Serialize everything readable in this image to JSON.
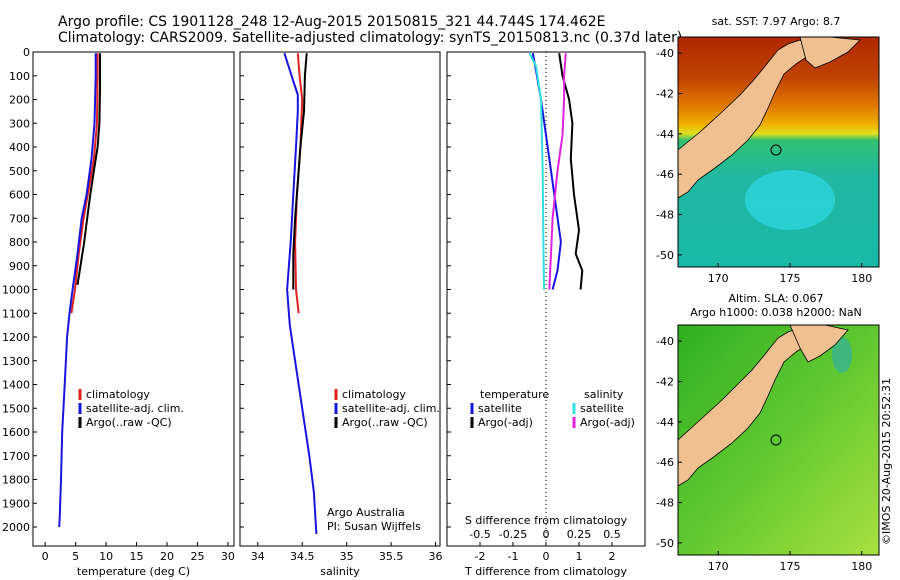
{
  "header": {
    "title_line1": "Argo profile: CS 1901128_248 12-Aug-2015 20150815_321 44.744S 174.462E",
    "title_line2": "Climatology: CARS2009. Satellite-adjusted climatology: synTS_20150813.nc (0.37d later)"
  },
  "colors": {
    "climatology": "#dd2020",
    "satellite": "#1515dd",
    "argo": "#000000",
    "sal_satellite": "#30e0e0",
    "sal_argo": "#e020e0",
    "land": "#f0c090"
  },
  "chart_data": [
    {
      "type": "line",
      "panel": "temperature",
      "xlabel": "temperature (deg C)",
      "xticks": [
        "0",
        "5",
        "10",
        "15",
        "20",
        "25",
        "30"
      ],
      "xlim": [
        -2,
        31
      ],
      "ylim": [
        2080,
        0
      ],
      "yticks": [
        "0",
        "100",
        "200",
        "300",
        "400",
        "500",
        "600",
        "700",
        "800",
        "900",
        "1000",
        "1100",
        "1200",
        "1300",
        "1400",
        "1500",
        "1600",
        "1700",
        "1800",
        "1900",
        "2000"
      ],
      "legend": [
        "climatology",
        "satellite-adj. clim.",
        "Argo(..raw -QC)"
      ],
      "series": [
        {
          "name": "climatology",
          "color": "#dd2020",
          "points": [
            [
              8.6,
              5
            ],
            [
              8.6,
              100
            ],
            [
              8.5,
              300
            ],
            [
              8.0,
              450
            ],
            [
              7.0,
              600
            ],
            [
              6.3,
              700
            ],
            [
              5.5,
              850
            ],
            [
              4.9,
              1000
            ],
            [
              4.3,
              1100
            ]
          ]
        },
        {
          "name": "satellite-adj. clim.",
          "color": "#1515dd",
          "points": [
            [
              8.3,
              5
            ],
            [
              8.3,
              100
            ],
            [
              8.1,
              300
            ],
            [
              7.6,
              450
            ],
            [
              6.8,
              600
            ],
            [
              6.0,
              700
            ],
            [
              5.3,
              850
            ],
            [
              4.5,
              1000
            ],
            [
              4.0,
              1100
            ],
            [
              3.6,
              1200
            ],
            [
              3.2,
              1400
            ],
            [
              2.8,
              1600
            ],
            [
              2.6,
              1800
            ],
            [
              2.4,
              1950
            ],
            [
              2.3,
              2000
            ]
          ]
        },
        {
          "name": "Argo(..raw -QC)",
          "color": "#000000",
          "points": [
            [
              9.0,
              5
            ],
            [
              9.0,
              150
            ],
            [
              8.9,
              300
            ],
            [
              8.6,
              400
            ],
            [
              8.0,
              500
            ],
            [
              7.4,
              600
            ],
            [
              6.9,
              700
            ],
            [
              6.4,
              800
            ],
            [
              5.8,
              900
            ],
            [
              5.3,
              980
            ]
          ]
        }
      ]
    },
    {
      "type": "line",
      "panel": "salinity",
      "xlabel": "salinity",
      "xticks": [
        "34",
        "34.5",
        "35",
        "35.5",
        "36"
      ],
      "xlim": [
        33.8,
        36.05
      ],
      "ylim": [
        2080,
        0
      ],
      "legend": [
        "climatology",
        "satellite-adj. clim.",
        "Argo(..raw -QC)"
      ],
      "annotations": [
        "Argo Australia",
        "PI: Susan Wijffels"
      ],
      "series": [
        {
          "name": "climatology",
          "color": "#dd2020",
          "points": [
            [
              34.45,
              5
            ],
            [
              34.47,
              100
            ],
            [
              34.5,
              200
            ],
            [
              34.48,
              400
            ],
            [
              34.44,
              600
            ],
            [
              34.42,
              800
            ],
            [
              34.43,
              1000
            ],
            [
              34.46,
              1100
            ]
          ]
        },
        {
          "name": "satellite-adj. clim.",
          "color": "#1515dd",
          "points": [
            [
              34.3,
              5
            ],
            [
              34.38,
              100
            ],
            [
              34.45,
              180
            ],
            [
              34.45,
              250
            ],
            [
              34.43,
              400
            ],
            [
              34.4,
              600
            ],
            [
              34.37,
              800
            ],
            [
              34.33,
              1000
            ],
            [
              34.36,
              1150
            ],
            [
              34.42,
              1300
            ],
            [
              34.5,
              1500
            ],
            [
              34.58,
              1700
            ],
            [
              34.63,
              1850
            ],
            [
              34.66,
              2030
            ]
          ]
        },
        {
          "name": "Argo(..raw -QC)",
          "color": "#000000",
          "points": [
            [
              34.55,
              5
            ],
            [
              34.53,
              100
            ],
            [
              34.52,
              250
            ],
            [
              34.48,
              400
            ],
            [
              34.45,
              550
            ],
            [
              34.42,
              700
            ],
            [
              34.4,
              850
            ],
            [
              34.4,
              1000
            ]
          ]
        }
      ]
    },
    {
      "type": "line",
      "panel": "difference",
      "xlabel": "T difference from climatology",
      "xlabel_top": "S difference from climatology",
      "xticks": [
        "-2",
        "-1",
        "0",
        "1",
        "2"
      ],
      "s_ticks": [
        "-0.5",
        "-0.25",
        "0",
        "0.25",
        "0.5"
      ],
      "xlim": [
        -3,
        3
      ],
      "ylim": [
        2080,
        0
      ],
      "legend_temperature": [
        "temperature",
        "satellite",
        "Argo(-adj)"
      ],
      "legend_salinity": [
        "salinity",
        "satellite",
        "Argo(-adj)"
      ],
      "series": [
        {
          "name": "temperature satellite",
          "color": "#1515dd",
          "points": [
            [
              -0.4,
              5
            ],
            [
              -0.3,
              80
            ],
            [
              -0.15,
              200
            ],
            [
              0.0,
              350
            ],
            [
              0.15,
              500
            ],
            [
              0.3,
              650
            ],
            [
              0.45,
              800
            ],
            [
              0.35,
              920
            ],
            [
              0.2,
              1000
            ]
          ]
        },
        {
          "name": "temperature Argo(-adj)",
          "color": "#000000",
          "points": [
            [
              0.4,
              5
            ],
            [
              0.5,
              100
            ],
            [
              0.7,
              200
            ],
            [
              0.8,
              300
            ],
            [
              0.75,
              450
            ],
            [
              0.85,
              600
            ],
            [
              1.0,
              750
            ],
            [
              0.9,
              850
            ],
            [
              1.1,
              920
            ],
            [
              1.05,
              1000
            ]
          ]
        },
        {
          "name": "salinity satellite",
          "color": "#30e0e0",
          "points": [
            [
              -0.5,
              5
            ],
            [
              -0.3,
              60
            ],
            [
              -0.15,
              200
            ],
            [
              -0.1,
              500
            ],
            [
              -0.08,
              800
            ],
            [
              -0.06,
              1000
            ]
          ]
        },
        {
          "name": "salinity Argo(-adj)",
          "color": "#e020e0",
          "points": [
            [
              0.6,
              5
            ],
            [
              0.55,
              100
            ],
            [
              0.55,
              200
            ],
            [
              0.5,
              350
            ],
            [
              0.35,
              500
            ],
            [
              0.2,
              700
            ],
            [
              0.15,
              850
            ],
            [
              0.1,
              1000
            ]
          ]
        }
      ]
    }
  ],
  "maps": {
    "sst": {
      "title": "sat. SST: 7.97 Argo: 8.7",
      "xticks": [
        "170",
        "175",
        "180"
      ],
      "yticks": [
        "-40",
        "-42",
        "-44",
        "-46",
        "-48",
        "-50"
      ]
    },
    "sla": {
      "title_line1": "Altim. SLA: 0.067",
      "title_line2": "Argo h1000: 0.038 h2000: NaN",
      "xticks": [
        "170",
        "175",
        "180"
      ],
      "yticks": [
        "-40",
        "-42",
        "-44",
        "-46",
        "-48",
        "-50"
      ]
    }
  },
  "footer": {
    "credit": "©IMOS 20-Aug-2015 20:52:31"
  }
}
